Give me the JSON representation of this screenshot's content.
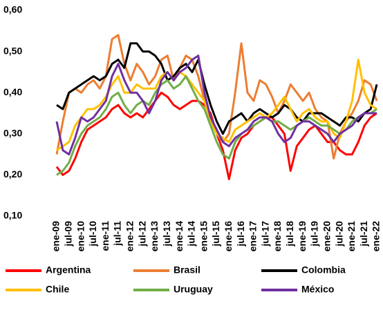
{
  "chart_data": {
    "type": "line",
    "categories": [
      "ene-09",
      null,
      "jul-09",
      null,
      "ene-10",
      null,
      "jul-10",
      null,
      "ene-11",
      null,
      "jul-11",
      null,
      "ene-12",
      null,
      "jul-12",
      null,
      "ene-13",
      null,
      "jul-13",
      null,
      "ene-14",
      null,
      "jul-14",
      null,
      "ene-15",
      null,
      "jul-15",
      null,
      "ene-16",
      null,
      "jul-16",
      null,
      "ene-17",
      null,
      "jul-17",
      null,
      "ene-18",
      null,
      "jul-18",
      null,
      "ene-19",
      null,
      "jul-19",
      null,
      "ene-20",
      null,
      "jul-20",
      null,
      "ene-21",
      null,
      "jul-21",
      null,
      "ene-22"
    ],
    "series": [
      {
        "name": "Argentina",
        "color": "#ff0000",
        "values": [
          0.22,
          0.2,
          0.21,
          0.24,
          0.28,
          0.31,
          0.32,
          0.33,
          0.34,
          0.36,
          0.37,
          0.35,
          0.34,
          0.35,
          0.34,
          0.36,
          0.38,
          0.4,
          0.39,
          0.37,
          0.36,
          0.37,
          0.38,
          0.38,
          0.37,
          0.35,
          0.3,
          0.26,
          0.19,
          0.26,
          0.29,
          0.3,
          0.32,
          0.33,
          0.34,
          0.34,
          0.32,
          0.3,
          0.21,
          0.27,
          0.29,
          0.31,
          0.32,
          0.3,
          0.28,
          0.28,
          0.26,
          0.25,
          0.25,
          0.28,
          0.32,
          0.34,
          0.35
        ]
      },
      {
        "name": "Brasil",
        "color": "#ed7d31",
        "values": [
          0.25,
          0.33,
          0.4,
          0.41,
          0.4,
          0.42,
          0.43,
          0.41,
          0.44,
          0.53,
          0.54,
          0.47,
          0.43,
          0.47,
          0.45,
          0.42,
          0.44,
          0.48,
          0.49,
          0.43,
          0.46,
          0.49,
          0.48,
          0.44,
          0.38,
          0.33,
          0.3,
          0.28,
          0.3,
          0.4,
          0.52,
          0.4,
          0.38,
          0.43,
          0.42,
          0.39,
          0.35,
          0.38,
          0.42,
          0.4,
          0.38,
          0.4,
          0.36,
          0.34,
          0.33,
          0.24,
          0.3,
          0.33,
          0.35,
          0.38,
          0.43,
          0.42,
          0.38
        ]
      },
      {
        "name": "Colombia",
        "color": "#000000",
        "values": [
          0.37,
          0.36,
          0.4,
          0.41,
          0.42,
          0.43,
          0.44,
          0.43,
          0.44,
          0.47,
          0.48,
          0.46,
          0.52,
          0.52,
          0.5,
          0.5,
          0.49,
          0.47,
          0.43,
          0.44,
          0.46,
          0.47,
          0.45,
          0.48,
          0.42,
          0.37,
          0.33,
          0.3,
          0.33,
          0.34,
          0.35,
          0.33,
          0.35,
          0.36,
          0.35,
          0.34,
          0.35,
          0.37,
          0.36,
          0.34,
          0.33,
          0.35,
          0.35,
          0.35,
          0.34,
          0.33,
          0.32,
          0.34,
          0.34,
          0.33,
          0.35,
          0.36,
          0.42
        ]
      },
      {
        "name": "Chile",
        "color": "#ffc000",
        "values": [
          0.26,
          0.27,
          0.28,
          0.32,
          0.34,
          0.36,
          0.36,
          0.37,
          0.39,
          0.42,
          0.44,
          0.4,
          0.4,
          0.42,
          0.41,
          0.41,
          0.41,
          0.44,
          0.45,
          0.43,
          0.45,
          0.44,
          0.42,
          0.4,
          0.38,
          0.33,
          0.3,
          0.29,
          0.28,
          0.31,
          0.32,
          0.33,
          0.34,
          0.35,
          0.34,
          0.35,
          0.37,
          0.39,
          0.36,
          0.33,
          0.35,
          0.36,
          0.34,
          0.33,
          0.33,
          0.3,
          0.29,
          0.33,
          0.38,
          0.48,
          0.4,
          0.37,
          0.36
        ]
      },
      {
        "name": "Uruguay",
        "color": "#70ad47",
        "values": [
          0.2,
          0.21,
          0.23,
          0.27,
          0.3,
          0.32,
          0.33,
          0.34,
          0.36,
          0.39,
          0.4,
          0.37,
          0.35,
          0.37,
          0.38,
          0.37,
          0.4,
          0.42,
          0.43,
          0.41,
          0.42,
          0.44,
          0.41,
          0.38,
          0.36,
          0.32,
          0.28,
          0.25,
          0.24,
          0.28,
          0.3,
          0.31,
          0.32,
          0.33,
          0.34,
          0.33,
          0.33,
          0.32,
          0.31,
          0.32,
          0.33,
          0.34,
          0.33,
          0.32,
          0.32,
          0.31,
          0.3,
          0.31,
          0.33,
          0.34,
          0.35,
          0.35,
          0.36
        ]
      },
      {
        "name": "México",
        "color": "#7030a0",
        "values": [
          0.33,
          0.26,
          0.25,
          0.29,
          0.34,
          0.33,
          0.34,
          0.36,
          0.38,
          0.44,
          0.47,
          0.43,
          0.4,
          0.4,
          0.38,
          0.35,
          0.38,
          0.43,
          0.45,
          0.43,
          0.45,
          0.46,
          0.48,
          0.49,
          0.4,
          0.34,
          0.31,
          0.28,
          0.27,
          0.29,
          0.3,
          0.31,
          0.33,
          0.34,
          0.34,
          0.33,
          0.3,
          0.28,
          0.29,
          0.32,
          0.33,
          0.33,
          0.32,
          0.31,
          0.3,
          0.28,
          0.3,
          0.31,
          0.32,
          0.34,
          0.35,
          0.35,
          0.35
        ]
      }
    ],
    "ylim": [
      0.1,
      0.6
    ],
    "yticks": [
      {
        "value": 0.1,
        "label": "0,10"
      },
      {
        "value": 0.2,
        "label": "0,20"
      },
      {
        "value": 0.3,
        "label": "0,30"
      },
      {
        "value": 0.4,
        "label": "0,40"
      },
      {
        "value": 0.5,
        "label": "0,50"
      },
      {
        "value": 0.6,
        "label": "0,60"
      }
    ],
    "grid": false
  }
}
